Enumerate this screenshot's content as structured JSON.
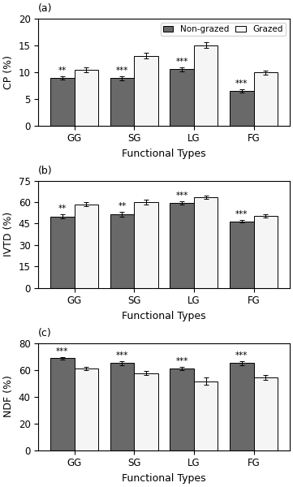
{
  "chart_data": [
    {
      "type": "bar",
      "title": "(a)",
      "xlabel": "Functional Types",
      "ylabel": "CP (%)",
      "categories": [
        "GG",
        "SG",
        "LG",
        "FG"
      ],
      "series": [
        {
          "name": "Non-grazed",
          "color": "#696969",
          "values": [
            8.9,
            8.8,
            10.5,
            6.5
          ],
          "errors": [
            0.3,
            0.4,
            0.4,
            0.3
          ],
          "annotations": [
            "**",
            "***",
            "***",
            "***"
          ]
        },
        {
          "name": "Grazed",
          "color": "#f5f5f5",
          "values": [
            10.4,
            13.0,
            15.0,
            9.9
          ],
          "errors": [
            0.4,
            0.5,
            0.5,
            0.4
          ]
        }
      ],
      "ylim": [
        0,
        20
      ],
      "yticks": [
        0,
        5,
        10,
        15,
        20
      ],
      "grid": false,
      "legend": "upper right"
    },
    {
      "type": "bar",
      "title": "(b)",
      "xlabel": "Functional Types",
      "ylabel": "IVTD (%)",
      "categories": [
        "GG",
        "SG",
        "LG",
        "FG"
      ],
      "series": [
        {
          "name": "Non-grazed",
          "color": "#696969",
          "values": [
            50.0,
            51.5,
            59.5,
            46.5
          ],
          "errors": [
            1.2,
            1.5,
            1.0,
            0.8
          ],
          "annotations": [
            "**",
            "**",
            "***",
            "***"
          ]
        },
        {
          "name": "Grazed",
          "color": "#f5f5f5",
          "values": [
            58.5,
            60.0,
            63.5,
            50.5
          ],
          "errors": [
            1.5,
            1.5,
            1.0,
            1.2
          ]
        }
      ],
      "ylim": [
        0,
        75
      ],
      "yticks": [
        0,
        15,
        30,
        45,
        60,
        75
      ],
      "grid": false
    },
    {
      "type": "bar",
      "title": "(c)",
      "xlabel": "Functional Types",
      "ylabel": "NDF (%)",
      "categories": [
        "GG",
        "SG",
        "LG",
        "FG"
      ],
      "series": [
        {
          "name": "Non-grazed",
          "color": "#696969",
          "values": [
            68.5,
            65.0,
            61.0,
            65.0
          ],
          "errors": [
            1.0,
            1.5,
            1.2,
            1.5
          ],
          "annotations": [
            "***",
            "***",
            "***",
            "***"
          ]
        },
        {
          "name": "Grazed",
          "color": "#f5f5f5",
          "values": [
            61.0,
            57.5,
            51.5,
            54.5
          ],
          "errors": [
            1.2,
            1.5,
            2.5,
            1.8
          ]
        }
      ],
      "ylim": [
        0,
        80
      ],
      "yticks": [
        0,
        20,
        40,
        60,
        80
      ],
      "grid": false
    }
  ]
}
